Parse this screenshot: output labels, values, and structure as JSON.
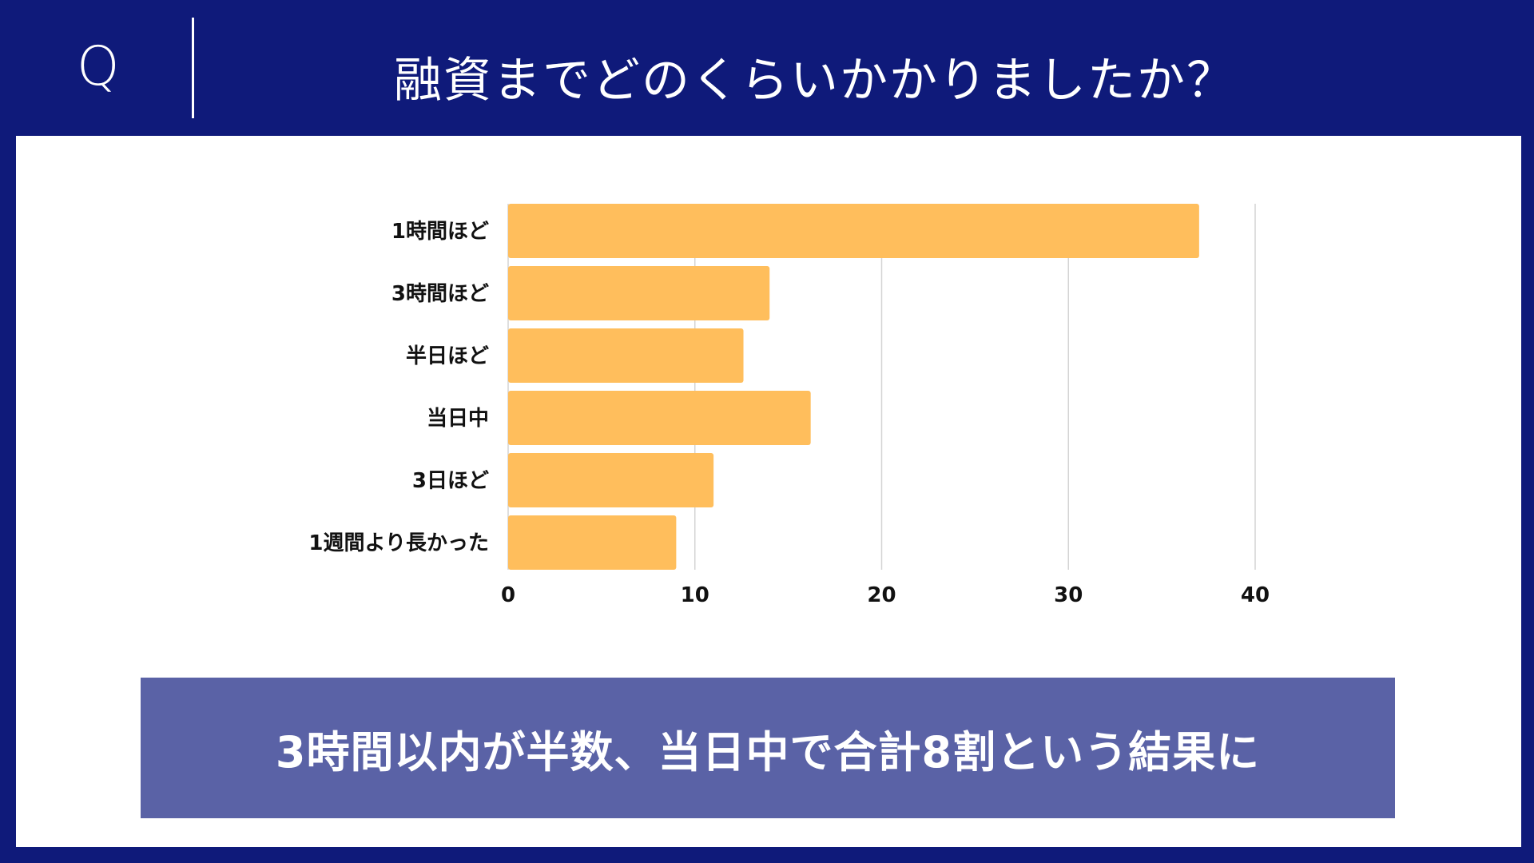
{
  "header": {
    "q_mark": "Q",
    "title": "融資までどのくらいかかりましたか？"
  },
  "chart_data": {
    "type": "bar",
    "orientation": "horizontal",
    "categories": [
      "1時間ほど",
      "3時間ほど",
      "半日ほど",
      "当日中",
      "3日ほど",
      "1週間より長かった"
    ],
    "values": [
      37,
      14,
      12.6,
      16.2,
      11,
      9
    ],
    "xticks": [
      "0",
      "10",
      "20",
      "30",
      "40"
    ],
    "xlim": [
      0,
      40
    ],
    "grid": true,
    "bar_color": "#ffbe5c",
    "grid_color": "#d4d4d4",
    "label_color": "#111111"
  },
  "summary": {
    "text": "3時間以内が半数、当日中で合計8割という結果に"
  }
}
